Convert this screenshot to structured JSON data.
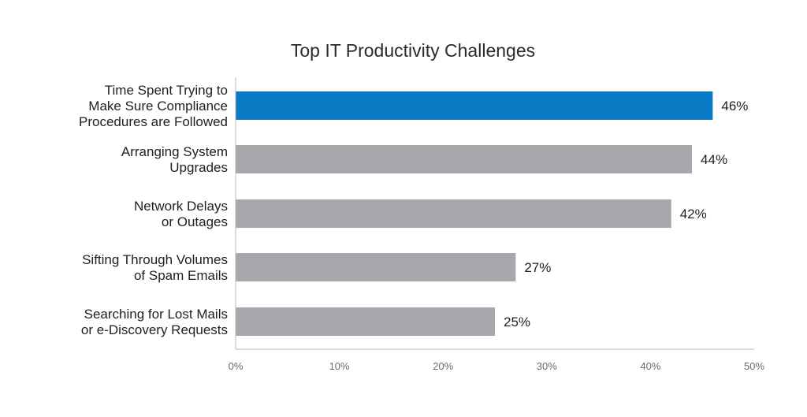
{
  "chart_data": {
    "type": "bar",
    "orientation": "horizontal",
    "title": "Top IT Productivity Challenges",
    "categories": [
      [
        "Time Spent Trying to",
        "Make Sure Compliance",
        "Procedures are Followed"
      ],
      [
        "Arranging System",
        "Upgrades"
      ],
      [
        "Network Delays",
        "or Outages"
      ],
      [
        "Sifting Through Volumes",
        "of Spam Emails"
      ],
      [
        "Searching for Lost Mails",
        "or e-Discovery Requests"
      ]
    ],
    "values": [
      46,
      44,
      42,
      27,
      25
    ],
    "value_labels": [
      "46%",
      "44%",
      "42%",
      "27%",
      "25%"
    ],
    "xlim": [
      0,
      50
    ],
    "x_ticks": [
      "0%",
      "10%",
      "20%",
      "30%",
      "40%",
      "50%"
    ],
    "xlabel": "",
    "ylabel": "",
    "grid": false,
    "colors": {
      "highlight": "#0A7AC4",
      "default": "#A7A8AB"
    },
    "highlight_index": 0
  }
}
